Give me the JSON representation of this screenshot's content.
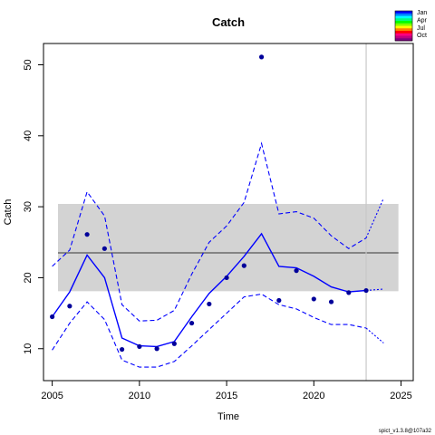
{
  "chart_data": {
    "type": "line",
    "title": "Catch",
    "xlabel": "Time",
    "ylabel": "Catch",
    "xlim": [
      2004.5,
      2025.7
    ],
    "ylim": [
      5.5,
      53.0
    ],
    "xticks": [
      2005,
      2010,
      2015,
      2020,
      2025
    ],
    "yticks": [
      10,
      20,
      30,
      40,
      50
    ],
    "grid": false,
    "legend_position": "top-right",
    "footnote": "spict_v1.3.8@107a32",
    "band": {
      "ymin": 18.1,
      "ymax": 30.4,
      "color": "#d3d3d3"
    },
    "hline": {
      "y": 23.5,
      "color": "#555555"
    },
    "vline": {
      "x": 2023.0,
      "color": "#c8c8c8"
    },
    "observations": {
      "color": "#00009a",
      "x": [
        2005,
        2006,
        2007,
        2008,
        2009,
        2010,
        2011,
        2012,
        2013,
        2014,
        2015,
        2016,
        2017,
        2018,
        2019,
        2020,
        2021,
        2022,
        2023
      ],
      "y": [
        14.5,
        16.0,
        26.1,
        24.1,
        9.9,
        10.3,
        10.0,
        10.7,
        13.6,
        16.3,
        20.0,
        21.7,
        51.1,
        16.8,
        21.0,
        17.0,
        16.6,
        17.9,
        18.2
      ]
    },
    "series": [
      {
        "name": "",
        "role": "estimate",
        "style": "solid",
        "color": "#0000ff",
        "x": [
          2005,
          2006,
          2007,
          2008,
          2009,
          2010,
          2011,
          2012,
          2013,
          2014,
          2015,
          2016,
          2017,
          2018,
          2019,
          2020,
          2021,
          2022,
          2023
        ],
        "y": [
          14.5,
          18.0,
          23.2,
          20.0,
          11.5,
          10.4,
          10.3,
          11.0,
          14.5,
          17.8,
          20.2,
          23.0,
          26.2,
          21.6,
          21.4,
          20.2,
          18.7,
          18.0,
          18.2
        ]
      },
      {
        "name": "",
        "role": "upper-ci",
        "style": "dashed",
        "color": "#0000ff",
        "x": [
          2005,
          2006,
          2007,
          2008,
          2009,
          2010,
          2011,
          2012,
          2013,
          2014,
          2015,
          2016,
          2017,
          2018,
          2019,
          2020,
          2021,
          2022,
          2023
        ],
        "y": [
          21.6,
          23.9,
          32.1,
          28.7,
          16.2,
          13.9,
          14.0,
          15.4,
          20.5,
          25.0,
          27.3,
          30.6,
          38.9,
          29.0,
          29.3,
          28.4,
          25.9,
          24.1,
          25.6
        ]
      },
      {
        "name": "",
        "role": "lower-ci",
        "style": "dashed",
        "color": "#0000ff",
        "x": [
          2005,
          2006,
          2007,
          2008,
          2009,
          2010,
          2011,
          2012,
          2013,
          2014,
          2015,
          2016,
          2017,
          2018,
          2019,
          2020,
          2021,
          2022,
          2023
        ],
        "y": [
          9.8,
          13.6,
          16.6,
          14.1,
          8.4,
          7.4,
          7.4,
          8.2,
          10.4,
          12.7,
          15.0,
          17.3,
          17.7,
          16.2,
          15.6,
          14.4,
          13.4,
          13.4,
          12.9
        ]
      },
      {
        "name": "",
        "role": "forecast-estimate",
        "style": "dotted",
        "color": "#0000ff",
        "x": [
          2023,
          2024
        ],
        "y": [
          18.2,
          18.4
        ]
      },
      {
        "name": "",
        "role": "forecast-upper",
        "style": "dotted",
        "color": "#0000ff",
        "x": [
          2023,
          2024
        ],
        "y": [
          25.6,
          31.2
        ]
      },
      {
        "name": "",
        "role": "forecast-lower",
        "style": "dotted",
        "color": "#0000ff",
        "x": [
          2023,
          2024
        ],
        "y": [
          12.9,
          10.8
        ]
      }
    ],
    "legend": {
      "labels": [
        "Jan",
        "Apr",
        "Jul",
        "Oct"
      ],
      "colors": [
        "#0000ff",
        "#0080ff",
        "#00ffff",
        "#00ff80",
        "#00ff00",
        "#80ff00",
        "#ffff00",
        "#ff8000",
        "#ff0000",
        "#ff0080",
        "#c00080",
        "#800080"
      ]
    }
  }
}
